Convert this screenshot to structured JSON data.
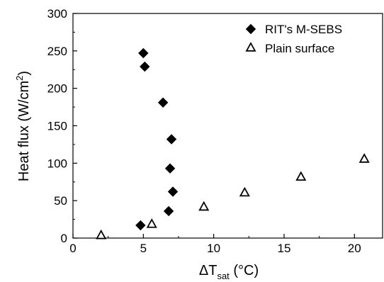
{
  "chart_data": {
    "type": "scatter",
    "xlabel": {
      "prefix": "ΔT",
      "subscript": "sat",
      "suffix": " (°C)"
    },
    "ylabel": {
      "main": "Heat flux (W/cm",
      "superscript": "2",
      "close": ")"
    },
    "xlim": [
      0,
      22
    ],
    "ylim": [
      0,
      300
    ],
    "xticks": [
      "0",
      "5",
      "10",
      "15",
      "20"
    ],
    "yticks": [
      "0",
      "50",
      "100",
      "150",
      "200",
      "250",
      "300"
    ],
    "legend_position": "top-right",
    "series": [
      {
        "name": "RIT's M-SEBS",
        "marker": "diamond-filled",
        "color": "#000000",
        "points": [
          {
            "x": 5.0,
            "y": 247
          },
          {
            "x": 5.1,
            "y": 229
          },
          {
            "x": 6.4,
            "y": 181
          },
          {
            "x": 7.0,
            "y": 132
          },
          {
            "x": 6.9,
            "y": 93
          },
          {
            "x": 7.1,
            "y": 62
          },
          {
            "x": 6.8,
            "y": 36
          },
          {
            "x": 4.8,
            "y": 17
          }
        ]
      },
      {
        "name": "Plain surface",
        "marker": "triangle-open",
        "color": "#000000",
        "points": [
          {
            "x": 2.0,
            "y": 4
          },
          {
            "x": 5.6,
            "y": 19
          },
          {
            "x": 9.3,
            "y": 42
          },
          {
            "x": 12.2,
            "y": 61
          },
          {
            "x": 16.2,
            "y": 82
          },
          {
            "x": 20.7,
            "y": 106
          }
        ]
      }
    ]
  }
}
